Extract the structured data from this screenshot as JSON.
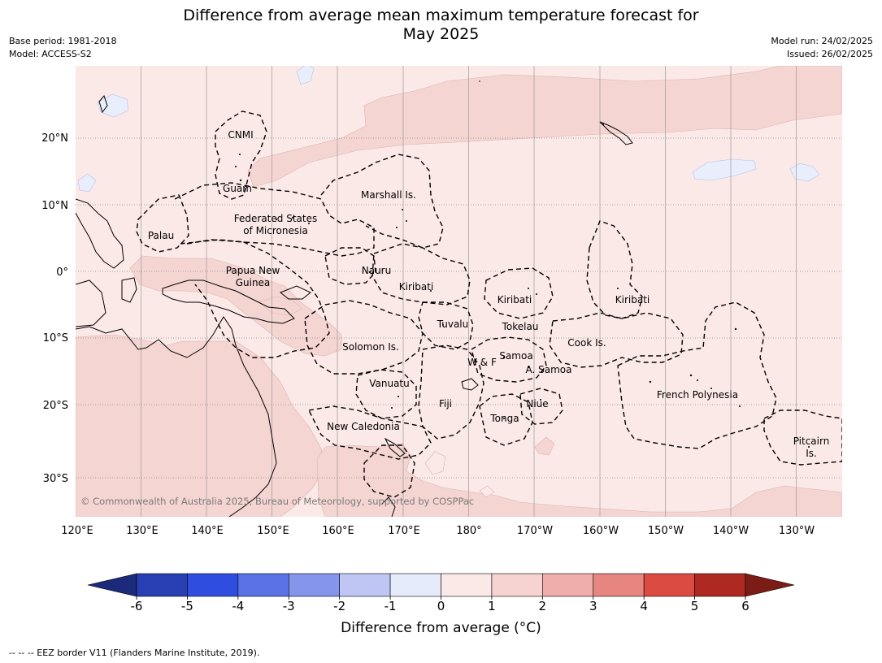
{
  "title": {
    "line1": "Difference from average mean maximum temperature forecast for",
    "line2": "May 2025"
  },
  "header_left": {
    "base_period": "Base period: 1981-2018",
    "model": "Model: ACCESS-S2"
  },
  "header_right": {
    "model_run": "Model run: 24/02/2025",
    "issued": "Issued: 26/02/2025"
  },
  "map": {
    "lon_labels": [
      "120°E",
      "130°E",
      "140°E",
      "150°E",
      "160°E",
      "170°E",
      "180°",
      "170°W",
      "160°W",
      "150°W",
      "140°W",
      "130°W"
    ],
    "lat_labels": [
      "20°N",
      "10°N",
      "0°",
      "10°S",
      "20°S",
      "30°S"
    ],
    "regions": [
      {
        "name": "cnmi",
        "label": "CNMI"
      },
      {
        "name": "guam",
        "label": "Guam"
      },
      {
        "name": "marshall",
        "label": "Marshall Is."
      },
      {
        "name": "fsm-1",
        "label": "Federated States"
      },
      {
        "name": "fsm-2",
        "label": "of Micronesia"
      },
      {
        "name": "palau",
        "label": "Palau"
      },
      {
        "name": "png-1",
        "label": "Papua New"
      },
      {
        "name": "png-2",
        "label": "Guinea"
      },
      {
        "name": "nauru",
        "label": "Nauru"
      },
      {
        "name": "kiribati-w",
        "label": "Kiribati"
      },
      {
        "name": "kiribati-c",
        "label": "Kiribati"
      },
      {
        "name": "kiribati-e",
        "label": "Kiribati"
      },
      {
        "name": "tuvalu",
        "label": "Tuvalu"
      },
      {
        "name": "tokelau",
        "label": "Tokelau"
      },
      {
        "name": "cook",
        "label": "Cook Is."
      },
      {
        "name": "solomon",
        "label": "Solomon Is."
      },
      {
        "name": "samoa",
        "label": "Samoa"
      },
      {
        "name": "wf",
        "label": "W & F"
      },
      {
        "name": "asamoa",
        "label": "A. Samoa"
      },
      {
        "name": "vanuatu",
        "label": "Vanuatu"
      },
      {
        "name": "fiji",
        "label": "Fiji"
      },
      {
        "name": "niue",
        "label": "Niue"
      },
      {
        "name": "tonga",
        "label": "Tonga"
      },
      {
        "name": "frpoly",
        "label": "French Polynesia"
      },
      {
        "name": "newcal",
        "label": "New Caledonia"
      },
      {
        "name": "pitcairn-1",
        "label": "Pitcairn"
      },
      {
        "name": "pitcairn-2",
        "label": "Is."
      }
    ],
    "copyright": "© Commonwealth of Australia 2025, Bureau of Meteorology, supported by COSPPac",
    "colors": {
      "ocean_0_1": "#fbe9e7",
      "anom_1_2": "#f5d5d2",
      "anom_neg1_0": "#e8eefc"
    }
  },
  "colorbar": {
    "ticks": [
      "-6",
      "-5",
      "-4",
      "-3",
      "-2",
      "-1",
      "0",
      "1",
      "2",
      "3",
      "4",
      "5",
      "6"
    ],
    "colors": [
      "#1b2a7a",
      "#283fb4",
      "#2f4ee0",
      "#5a72e6",
      "#8595ec",
      "#bfc6f4",
      "#e6ebfc",
      "#fbe9e7",
      "#f6d3d1",
      "#efadab",
      "#e78581",
      "#db4b41",
      "#ad2922",
      "#7b1c17"
    ],
    "label": "Difference from average ($^\\circ$C)",
    "label_display": "Difference from average (°C)"
  },
  "footnote": "--  --  -- EEZ border V11 (Flanders Marine Institute, 2019)."
}
